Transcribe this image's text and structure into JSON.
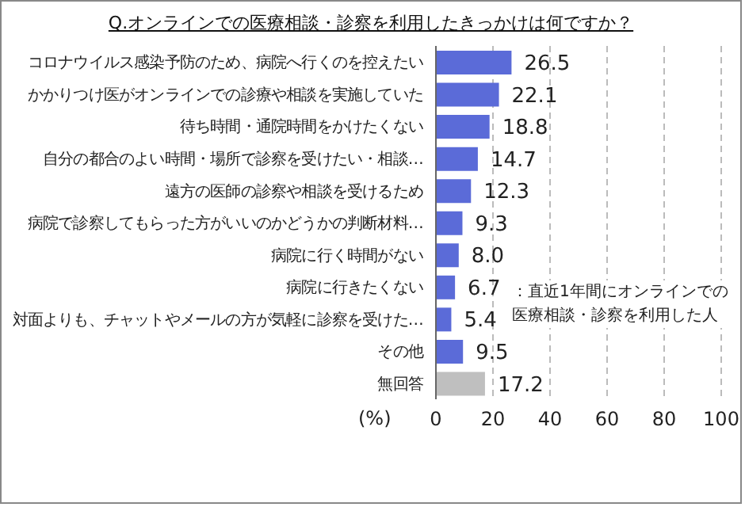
{
  "chart_data": {
    "type": "bar",
    "orientation": "horizontal",
    "title": "Q.オンラインでの医療相談・診察を利用したきっかけは何ですか？",
    "xlabel": "(%)",
    "categories": [
      "コロナウイルス感染予防のため、病院へ行くのを控えたい",
      "かかりつけ医がオンラインでの診療や相談を実施していた",
      "待ち時間・通院時間をかけたくない",
      "自分の都合のよい時間・場所で診察を受けたい・相談…",
      "遠方の医師の診察や相談を受けるため",
      "病院で診察してもらった方がいいのかどうかの判断材料…",
      "病院に行く時間がない",
      "病院に行きたくない",
      "対面よりも、チャットやメールの方が気軽に診察を受けた…",
      "その他",
      "無回答"
    ],
    "values": [
      26.5,
      22.1,
      18.8,
      14.7,
      12.3,
      9.3,
      8.0,
      6.7,
      5.4,
      9.5,
      17.2
    ],
    "colors": [
      "#5b6bd8",
      "#5b6bd8",
      "#5b6bd8",
      "#5b6bd8",
      "#5b6bd8",
      "#5b6bd8",
      "#5b6bd8",
      "#5b6bd8",
      "#5b6bd8",
      "#5b6bd8",
      "#bfbfbf"
    ],
    "value_labels": [
      "26.5",
      "22.1",
      "18.8",
      "14.7",
      "12.3",
      "9.3",
      "8.0",
      "6.7",
      "5.4",
      "9.5",
      "17.2"
    ],
    "xlim": [
      0,
      100
    ],
    "xticks": [
      0,
      20,
      40,
      60,
      80,
      100
    ],
    "grid": "x",
    "annotations": [
      "：直近1年間にオンラインでの医療相談・診察を利用した人"
    ]
  }
}
